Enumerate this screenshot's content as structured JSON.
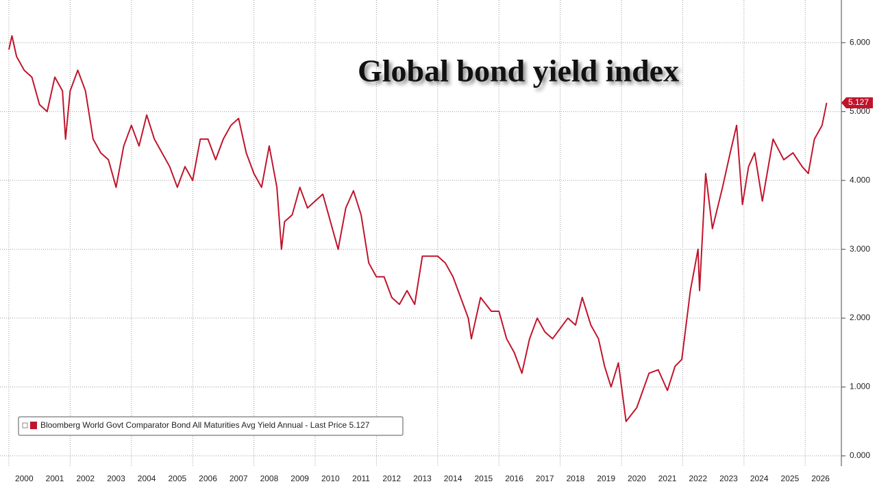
{
  "chart_data": {
    "type": "line",
    "title": "Global bond yield index",
    "xlim": [
      1999.71,
      2027.18
    ],
    "xticks": [
      2000,
      2001,
      2002,
      2003,
      2004,
      2005,
      2006,
      2007,
      2008,
      2009,
      2010,
      2011,
      2012,
      2013,
      2014,
      2015,
      2016,
      2017,
      2018,
      2019,
      2020,
      2021,
      2022,
      2023,
      2024,
      2025,
      2026
    ],
    "ylim": [
      -0.15,
      6.62
    ],
    "yticks": [
      {
        "value": 0,
        "label": "0.000"
      },
      {
        "value": 1,
        "label": "1.000"
      },
      {
        "value": 2,
        "label": "2.000"
      },
      {
        "value": 3,
        "label": "3.000"
      },
      {
        "value": 4,
        "label": "4.000"
      },
      {
        "value": 5,
        "label": "5.000"
      },
      {
        "value": 6,
        "label": "6.000"
      }
    ],
    "grid": true,
    "legend": "lower left",
    "series": [
      {
        "name": "Bloomberg World Govt Comparator Bond All Maturities Avg Yield Annual - Last Price 5.127",
        "color": "#c0142b",
        "x": [
          2000.0,
          2000.1,
          2000.25,
          2000.5,
          2000.75,
          2001.0,
          2001.25,
          2001.5,
          2001.75,
          2001.85,
          2002.0,
          2002.25,
          2002.5,
          2002.75,
          2003.0,
          2003.25,
          2003.5,
          2003.75,
          2004.0,
          2004.25,
          2004.5,
          2004.75,
          2005.0,
          2005.25,
          2005.5,
          2005.75,
          2006.0,
          2006.25,
          2006.5,
          2006.75,
          2007.0,
          2007.25,
          2007.5,
          2007.75,
          2008.0,
          2008.25,
          2008.5,
          2008.75,
          2008.9,
          2009.0,
          2009.25,
          2009.5,
          2009.75,
          2010.0,
          2010.25,
          2010.5,
          2010.75,
          2011.0,
          2011.25,
          2011.5,
          2011.75,
          2012.0,
          2012.25,
          2012.5,
          2012.75,
          2013.0,
          2013.25,
          2013.5,
          2013.75,
          2014.0,
          2014.25,
          2014.5,
          2014.75,
          2015.0,
          2015.1,
          2015.4,
          2015.75,
          2016.0,
          2016.25,
          2016.5,
          2016.75,
          2017.0,
          2017.25,
          2017.5,
          2017.75,
          2018.0,
          2018.25,
          2018.5,
          2018.72,
          2019.0,
          2019.25,
          2019.45,
          2019.66,
          2019.9,
          2020.15,
          2020.5,
          2020.9,
          2021.2,
          2021.5,
          2021.75,
          2021.97,
          2022.25,
          2022.5,
          2022.55,
          2022.75,
          2022.97,
          2023.3,
          2023.55,
          2023.76,
          2023.95,
          2024.15,
          2024.35,
          2024.6,
          2024.95,
          2025.3,
          2025.6,
          2025.9,
          2026.1,
          2026.3,
          2026.55,
          2026.7
        ],
        "values": [
          5.9,
          6.1,
          5.8,
          5.6,
          5.5,
          5.1,
          5.0,
          5.5,
          5.3,
          4.6,
          5.3,
          5.6,
          5.3,
          4.6,
          4.4,
          4.3,
          3.9,
          4.5,
          4.8,
          4.5,
          4.95,
          4.6,
          4.4,
          4.2,
          3.9,
          4.2,
          4.0,
          4.6,
          4.6,
          4.3,
          4.6,
          4.8,
          4.9,
          4.4,
          4.1,
          3.9,
          4.5,
          3.9,
          3.0,
          3.4,
          3.5,
          3.9,
          3.6,
          3.7,
          3.8,
          3.4,
          3.0,
          3.6,
          3.85,
          3.5,
          2.8,
          2.6,
          2.6,
          2.3,
          2.2,
          2.4,
          2.2,
          2.9,
          2.9,
          2.9,
          2.8,
          2.6,
          2.3,
          2.0,
          1.7,
          2.3,
          2.1,
          2.1,
          1.7,
          1.5,
          1.2,
          1.7,
          2.0,
          1.8,
          1.7,
          1.85,
          2.0,
          1.9,
          2.3,
          1.9,
          1.7,
          1.3,
          1.0,
          1.35,
          0.5,
          0.7,
          1.2,
          1.25,
          0.95,
          1.3,
          1.4,
          2.4,
          3.0,
          2.4,
          4.1,
          3.3,
          3.9,
          4.4,
          4.8,
          3.65,
          4.2,
          4.4,
          3.7,
          4.6,
          4.3,
          4.4,
          4.2,
          4.1,
          4.6,
          4.8,
          5.127
        ]
      }
    ]
  }
}
